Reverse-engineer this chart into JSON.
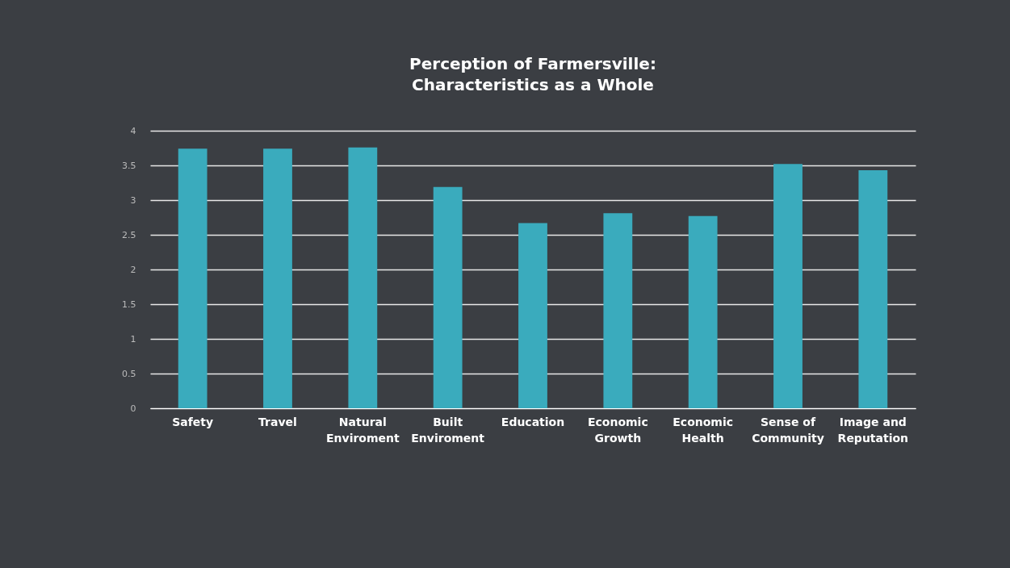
{
  "chart_data": {
    "type": "bar",
    "title": "Perception of Farmersville:\nCharacteristics as a Whole",
    "categories": [
      "Safety",
      "Travel",
      "Natural Enviroment",
      "Built Enviroment",
      "Education",
      "Economic Growth",
      "Economic Health",
      "Sense of Community",
      "Image and Reputation"
    ],
    "values": [
      3.74,
      3.74,
      3.76,
      3.19,
      2.67,
      2.81,
      2.77,
      3.52,
      3.43
    ],
    "color": "#3aabbd",
    "ylim": [
      0,
      4
    ],
    "yticks": [
      0,
      0.5,
      1,
      1.5,
      2,
      2.5,
      3,
      3.5,
      4
    ],
    "grid": true
  }
}
